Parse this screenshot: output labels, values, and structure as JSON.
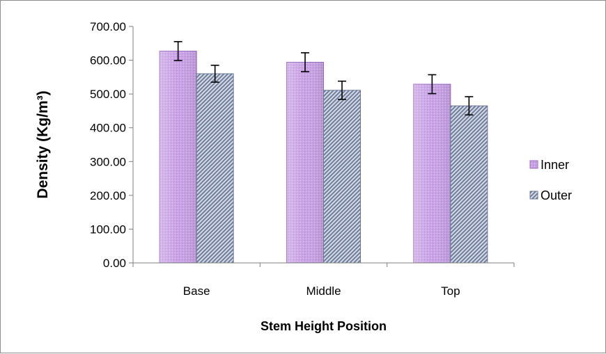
{
  "chart_data": {
    "type": "bar",
    "categories": [
      "Base",
      "Middle",
      "Top"
    ],
    "series": [
      {
        "name": "Inner",
        "values": [
          627,
          594,
          529
        ],
        "error": [
          28,
          28,
          28
        ],
        "color": "#c9a3e6",
        "pattern": "dotted"
      },
      {
        "name": "Outer",
        "values": [
          560,
          511,
          465
        ],
        "error": [
          25,
          27,
          27
        ],
        "color": "#8a97b3",
        "pattern": "diagonal-hatch"
      }
    ],
    "title": "",
    "xlabel": "Stem Height Position",
    "ylabel": "Density (Kg/m³)",
    "ylim": [
      0,
      700
    ],
    "yticks": [
      0,
      100,
      200,
      300,
      400,
      500,
      600,
      700
    ],
    "ytick_labels": [
      "0.00",
      "100.00",
      "200.00",
      "300.00",
      "400.00",
      "500.00",
      "600.00",
      "700.00"
    ],
    "grid": false,
    "legend": "right"
  }
}
